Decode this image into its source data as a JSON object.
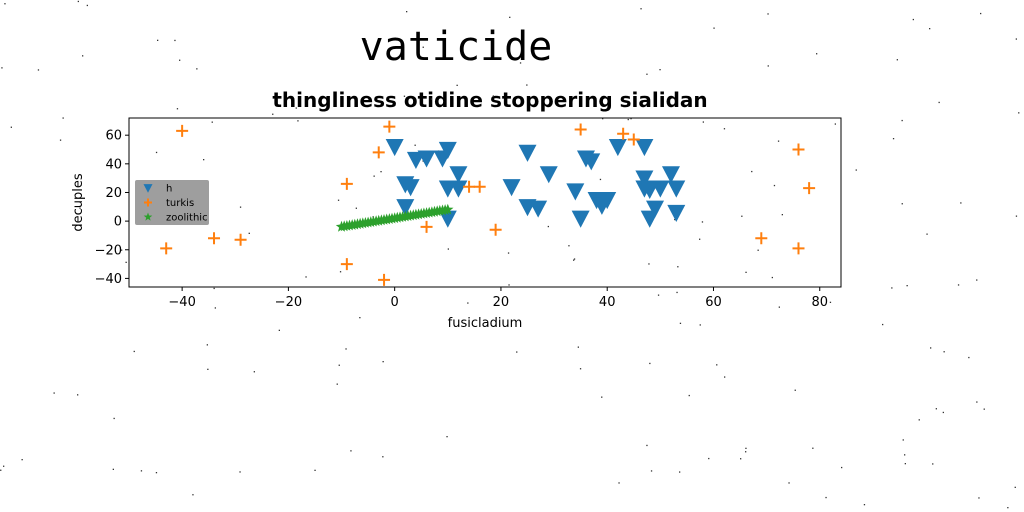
{
  "chart_data": {
    "type": "scatter",
    "suptitle": "vaticide",
    "title": "thingliness otidine stoppering sialidan",
    "xlabel": "fusicladium",
    "ylabel": "decuples",
    "xlim": [
      -50,
      84
    ],
    "ylim": [
      -46,
      72
    ],
    "xticks": [
      -40,
      -20,
      0,
      20,
      40,
      60,
      80
    ],
    "yticks": [
      -40,
      -20,
      0,
      20,
      40,
      60
    ],
    "legend_position": "left",
    "series": [
      {
        "name": "h",
        "marker": "triangle-down",
        "color": "#1f77b4",
        "points": [
          [
            0,
            52
          ],
          [
            4,
            43
          ],
          [
            6,
            44
          ],
          [
            9,
            44
          ],
          [
            10,
            50
          ],
          [
            12,
            33
          ],
          [
            2,
            26
          ],
          [
            3,
            24
          ],
          [
            10,
            23
          ],
          [
            12,
            23
          ],
          [
            2,
            10
          ],
          [
            10,
            2
          ],
          [
            22,
            24
          ],
          [
            25,
            48
          ],
          [
            25,
            10
          ],
          [
            27,
            9
          ],
          [
            29,
            33
          ],
          [
            34,
            21
          ],
          [
            36,
            44
          ],
          [
            37,
            42
          ],
          [
            35,
            2
          ],
          [
            38,
            15
          ],
          [
            39,
            11
          ],
          [
            40,
            15
          ],
          [
            42,
            52
          ],
          [
            47,
            52
          ],
          [
            47,
            30
          ],
          [
            47,
            23
          ],
          [
            48,
            22
          ],
          [
            50,
            23
          ],
          [
            52,
            33
          ],
          [
            53,
            23
          ],
          [
            53,
            6
          ],
          [
            49,
            9
          ],
          [
            48,
            2
          ]
        ]
      },
      {
        "name": "turkis",
        "marker": "plus",
        "color": "#ff7f0e",
        "points": [
          [
            -40,
            63
          ],
          [
            -43,
            -19
          ],
          [
            -34,
            -12
          ],
          [
            -29,
            -13
          ],
          [
            -9,
            26
          ],
          [
            -9,
            -30
          ],
          [
            -3,
            48
          ],
          [
            -1,
            66
          ],
          [
            -2,
            -41
          ],
          [
            6,
            -4
          ],
          [
            14,
            24
          ],
          [
            16,
            24
          ],
          [
            19,
            -6
          ],
          [
            35,
            64
          ],
          [
            43,
            61
          ],
          [
            45,
            57
          ],
          [
            69,
            -12
          ],
          [
            76,
            50
          ],
          [
            76,
            -19
          ],
          [
            78,
            23
          ]
        ]
      },
      {
        "name": "zoolithic",
        "marker": "star",
        "color": "#2ca02c",
        "points": [
          [
            -10,
            -4
          ],
          [
            -9.5,
            -3.7
          ],
          [
            -9,
            -3.4
          ],
          [
            -8.5,
            -3.1
          ],
          [
            -8,
            -2.8
          ],
          [
            -7.5,
            -2.5
          ],
          [
            -7,
            -2.2
          ],
          [
            -6.5,
            -1.9
          ],
          [
            -6,
            -1.6
          ],
          [
            -5.5,
            -1.3
          ],
          [
            -5,
            -1.0
          ],
          [
            -4.5,
            -0.7
          ],
          [
            -4,
            -0.4
          ],
          [
            -3.5,
            -0.1
          ],
          [
            -3,
            0.2
          ],
          [
            -2.5,
            0.5
          ],
          [
            -2,
            0.8
          ],
          [
            -1.5,
            1.1
          ],
          [
            -1,
            1.4
          ],
          [
            -0.5,
            1.7
          ],
          [
            0,
            2.0
          ],
          [
            0.5,
            2.3
          ],
          [
            1,
            2.6
          ],
          [
            1.5,
            2.9
          ],
          [
            2,
            3.2
          ],
          [
            2.5,
            3.5
          ],
          [
            3,
            3.8
          ],
          [
            3.5,
            4.1
          ],
          [
            4,
            4.4
          ],
          [
            4.5,
            4.7
          ],
          [
            5,
            5.0
          ],
          [
            5.5,
            5.3
          ],
          [
            6,
            5.6
          ],
          [
            6.5,
            5.9
          ],
          [
            7,
            6.2
          ],
          [
            7.5,
            6.5
          ],
          [
            8,
            6.8
          ],
          [
            8.5,
            7.1
          ],
          [
            9,
            7.4
          ],
          [
            9.5,
            7.7
          ],
          [
            10,
            8.0
          ]
        ]
      }
    ]
  }
}
